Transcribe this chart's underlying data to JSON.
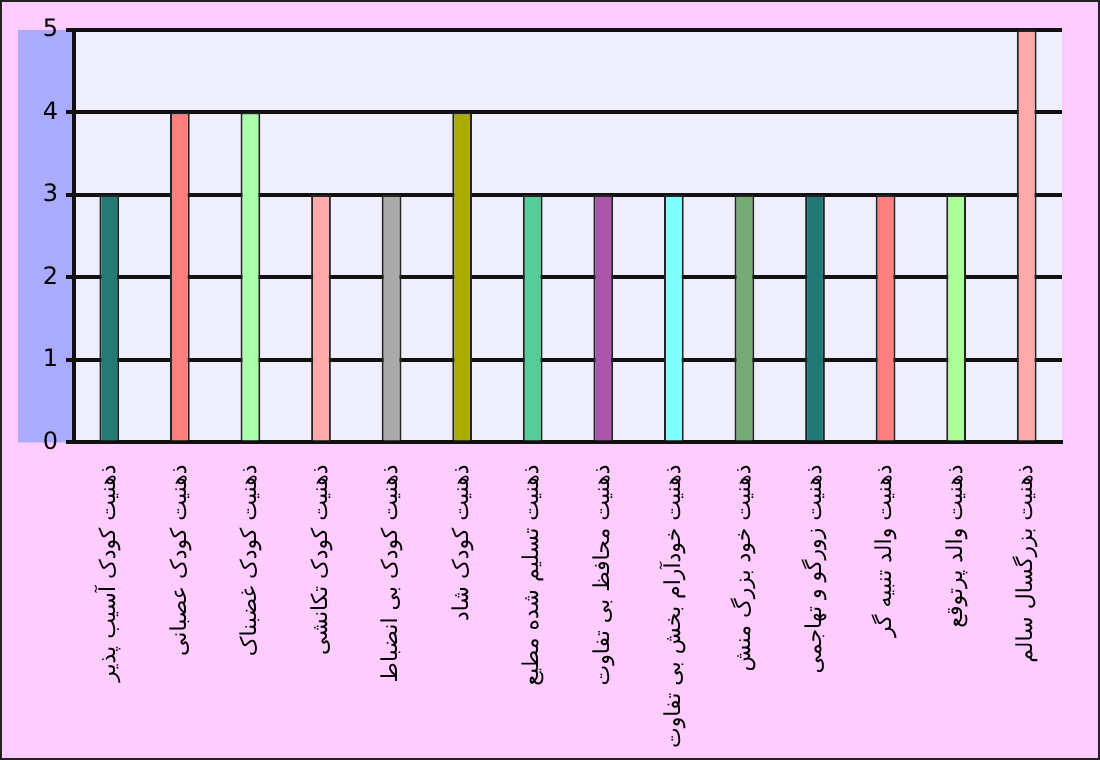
{
  "chart_data": {
    "type": "bar",
    "categories": [
      "ذهنیت کودک آسیب پذیر",
      "ذهنیت کودک عصبانی",
      "ذهنیت کودک غضبناک",
      "ذهنیت کودک تکانشی",
      "ذهنیت کودک بی انضباط",
      "ذهنیت کودک شاد",
      "ذهنیت تسلیم شده مطیع",
      "ذهنیت محافظ بی تفاوت",
      "ذهنیت خودآرام بخش بی تفاوت",
      "ذهنیت خود بزرگ منش",
      "ذهنیت زورگو و تهاجمی",
      "ذهنیت والد تنبیه گر",
      "ذهنیت والد پرتوقع",
      "ذهنیت بزرگسال سالم"
    ],
    "values": [
      3,
      4,
      4,
      3,
      3,
      4,
      3,
      3,
      3,
      3,
      3,
      3,
      3,
      5
    ],
    "colors": [
      "#267a74",
      "#ff7f7f",
      "#aaffaa",
      "#ffaaaa",
      "#aaaaaa",
      "#aaaa00",
      "#55cc99",
      "#aa55aa",
      "#7fffff",
      "#77aa77",
      "#227777",
      "#ff7f7f",
      "#aaff99",
      "#ffaaaa"
    ],
    "ylim": [
      0,
      5
    ],
    "yticks": [
      0,
      1,
      2,
      3,
      4,
      5
    ],
    "grid": "y"
  }
}
